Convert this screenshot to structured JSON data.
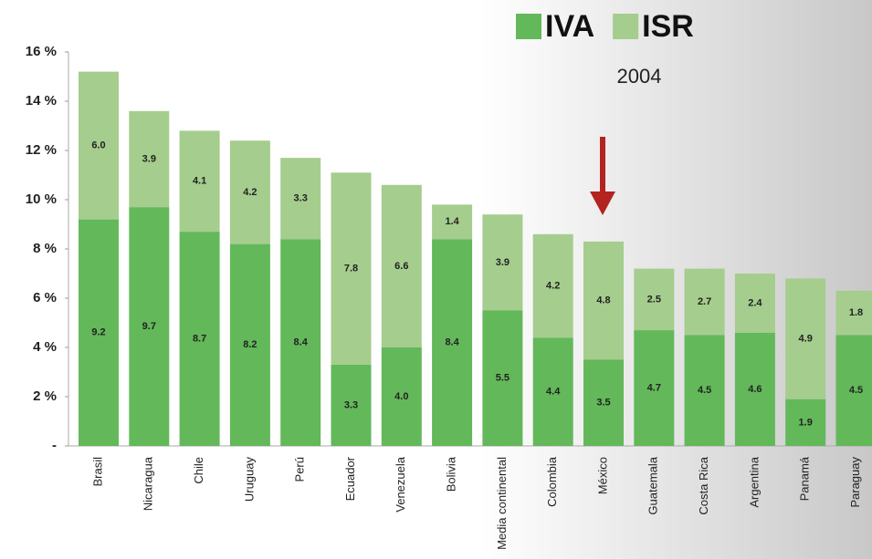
{
  "chart_data": {
    "type": "stacked_bar",
    "subtitle": "2004",
    "categories": [
      "Brasil",
      "Nicaragua",
      "Chile",
      "Uruguay",
      "Perú",
      "Ecuador",
      "Venezuela",
      "Bolivia",
      "Media continental",
      "Colombia",
      "México",
      "Guatemala",
      "Costa Rica",
      "Argentina",
      "Panamá",
      "Paraguay"
    ],
    "series": [
      {
        "name": "IVA",
        "color": "#63b85a",
        "values": [
          9.2,
          9.7,
          8.7,
          8.2,
          8.4,
          3.3,
          4.0,
          8.4,
          5.5,
          4.4,
          3.5,
          4.7,
          4.5,
          4.6,
          1.9,
          4.5
        ],
        "value_labels": [
          "9.2",
          "9.7",
          "8.7",
          "8.2",
          "8.4",
          "3.3",
          "4.0",
          "8.4",
          "5.5",
          "4.4",
          "3.5",
          "4.7",
          "4.5",
          "4.6",
          "1.9",
          "4.5"
        ]
      },
      {
        "name": "ISR",
        "color": "#a5cd8d",
        "values": [
          6.0,
          3.9,
          4.1,
          4.2,
          3.3,
          7.8,
          6.6,
          1.4,
          3.9,
          4.2,
          4.8,
          2.5,
          2.7,
          2.4,
          4.9,
          1.8
        ],
        "value_labels": [
          "6.0",
          "3.9",
          "4.1",
          "4.2",
          "3.3",
          "7.8",
          "6.6",
          "1.4",
          "3.9",
          "4.2",
          "4.8",
          "2.5",
          "2.7",
          "2.4",
          "4.9",
          "1.8"
        ]
      }
    ],
    "ylim": [
      0,
      16
    ],
    "yticks": [
      {
        "value": 0,
        "label": "-"
      },
      {
        "value": 2,
        "label": "2 %"
      },
      {
        "value": 4,
        "label": "4 %"
      },
      {
        "value": 6,
        "label": "6 %"
      },
      {
        "value": 8,
        "label": "8 %"
      },
      {
        "value": 10,
        "label": "10 %"
      },
      {
        "value": 12,
        "label": "12 %"
      },
      {
        "value": 14,
        "label": "14 %"
      },
      {
        "value": 16,
        "label": "16 %"
      }
    ],
    "legend": "top-right"
  }
}
